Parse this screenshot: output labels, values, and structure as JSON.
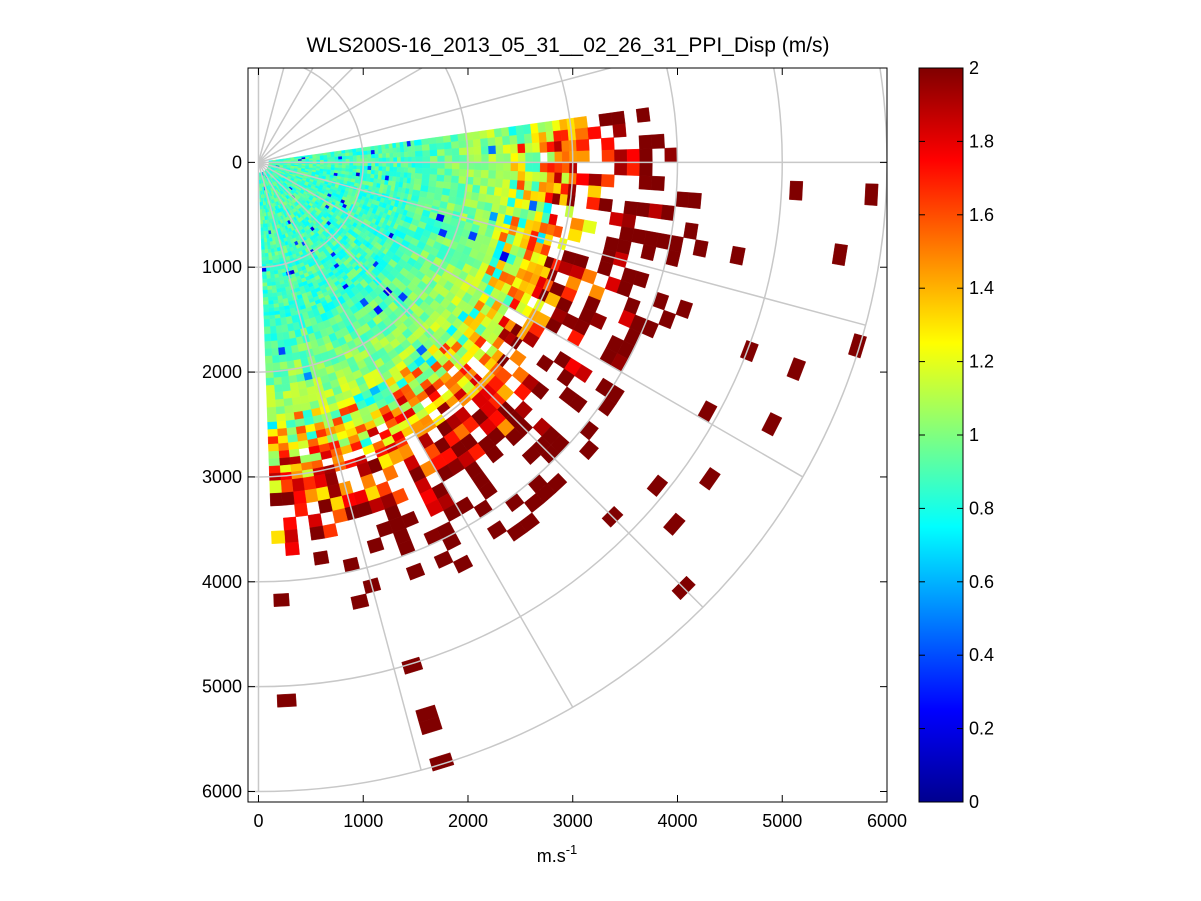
{
  "chart_data": {
    "type": "heatmap",
    "title": "WLS200S-16_2013_05_31__02_26_31_PPI_Disp (m/s)",
    "xlabel": "m.s",
    "xlabel_superscript": "-1",
    "ylabel": "",
    "xlim": [
      -100,
      6000
    ],
    "ylim": [
      6100,
      -900
    ],
    "y_axis_direction": "reversed",
    "xticks": [
      0,
      1000,
      2000,
      3000,
      4000,
      5000,
      6000
    ],
    "yticks": [
      0,
      1000,
      2000,
      3000,
      4000,
      5000,
      6000
    ],
    "grid": "polar",
    "polar_grid": {
      "ring_radii": [
        1000,
        2000,
        3000,
        4000,
        5000,
        6000
      ],
      "spoke_angles_deg": [
        90,
        75,
        60,
        45,
        30,
        15,
        0,
        -15,
        -30,
        -45,
        -60,
        -75,
        -90
      ]
    },
    "scan": {
      "azimuth_range_deg": [
        -8,
        88
      ],
      "range_m": [
        100,
        6000
      ]
    },
    "colorbar": {
      "colormap": "jet",
      "clim": [
        0,
        2
      ],
      "ticks": [
        0,
        0.2,
        0.4,
        0.6,
        0.8,
        1,
        1.2,
        1.4,
        1.6,
        1.8,
        2
      ],
      "location": "right"
    },
    "colors": {
      "grid": "#c8c8c8",
      "axis": "#000000",
      "background": "#ffffff"
    }
  }
}
